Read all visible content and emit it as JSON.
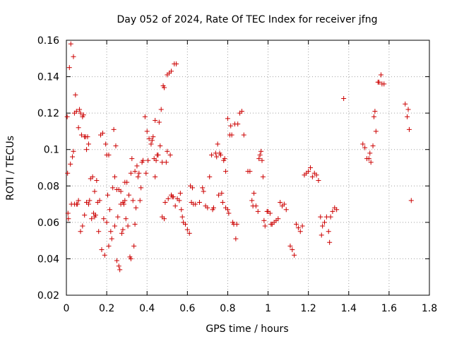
{
  "chart_data": {
    "type": "scatter",
    "title": "Day 052 of 2024, Rate Of TEC Index for receiver jfng",
    "xlabel": "GPS time / hours",
    "ylabel": "ROTI / TECUs",
    "xlim": [
      0,
      1.8
    ],
    "ylim": [
      0.02,
      0.16
    ],
    "grid": true,
    "marker": "plus",
    "color": "#cc0000",
    "x_ticks": [
      0,
      0.2,
      0.4,
      0.6,
      0.8,
      1,
      1.2,
      1.4,
      1.6,
      1.8
    ],
    "x_tick_labels": [
      "0",
      "0.2",
      "0.4",
      "0.6",
      "0.8",
      "1",
      "1.2",
      "1.4",
      "1.6",
      "1.8"
    ],
    "y_ticks": [
      0.02,
      0.04,
      0.06,
      0.08,
      0.1,
      0.12,
      0.14,
      0.16
    ],
    "y_tick_labels": [
      "0.02",
      "0.04",
      "0.06",
      "0.08",
      "0.1",
      "0.12",
      "0.14",
      "0.16"
    ],
    "points": [
      [
        0.004,
        0.118
      ],
      [
        0.006,
        0.087
      ],
      [
        0.008,
        0.065
      ],
      [
        0.01,
        0.062
      ],
      [
        0.015,
        0.145
      ],
      [
        0.02,
        0.092
      ],
      [
        0.022,
        0.158
      ],
      [
        0.025,
        0.07
      ],
      [
        0.03,
        0.096
      ],
      [
        0.035,
        0.099
      ],
      [
        0.035,
        0.151
      ],
      [
        0.04,
        0.12
      ],
      [
        0.04,
        0.07
      ],
      [
        0.045,
        0.13
      ],
      [
        0.05,
        0.121
      ],
      [
        0.05,
        0.07
      ],
      [
        0.055,
        0.07
      ],
      [
        0.06,
        0.112
      ],
      [
        0.06,
        0.072
      ],
      [
        0.065,
        0.122
      ],
      [
        0.07,
        0.055
      ],
      [
        0.07,
        0.12
      ],
      [
        0.075,
        0.108
      ],
      [
        0.08,
        0.118
      ],
      [
        0.08,
        0.058
      ],
      [
        0.085,
        0.119
      ],
      [
        0.09,
        0.107
      ],
      [
        0.09,
        0.064
      ],
      [
        0.095,
        0.107
      ],
      [
        0.1,
        0.1
      ],
      [
        0.1,
        0.071
      ],
      [
        0.105,
        0.107
      ],
      [
        0.11,
        0.07
      ],
      [
        0.11,
        0.103
      ],
      [
        0.115,
        0.072
      ],
      [
        0.12,
        0.084
      ],
      [
        0.125,
        0.062
      ],
      [
        0.13,
        0.085
      ],
      [
        0.135,
        0.065
      ],
      [
        0.14,
        0.063
      ],
      [
        0.14,
        0.077
      ],
      [
        0.145,
        0.064
      ],
      [
        0.15,
        0.083
      ],
      [
        0.155,
        0.071
      ],
      [
        0.16,
        0.055
      ],
      [
        0.165,
        0.072
      ],
      [
        0.17,
        0.108
      ],
      [
        0.175,
        0.045
      ],
      [
        0.18,
        0.109
      ],
      [
        0.185,
        0.062
      ],
      [
        0.19,
        0.042
      ],
      [
        0.195,
        0.103
      ],
      [
        0.2,
        0.06
      ],
      [
        0.2,
        0.097
      ],
      [
        0.205,
        0.075
      ],
      [
        0.21,
        0.047
      ],
      [
        0.21,
        0.097
      ],
      [
        0.215,
        0.067
      ],
      [
        0.22,
        0.055
      ],
      [
        0.225,
        0.051
      ],
      [
        0.23,
        0.079
      ],
      [
        0.235,
        0.111
      ],
      [
        0.24,
        0.085
      ],
      [
        0.24,
        0.058
      ],
      [
        0.245,
        0.102
      ],
      [
        0.25,
        0.039
      ],
      [
        0.25,
        0.078
      ],
      [
        0.255,
        0.063
      ],
      [
        0.26,
        0.036
      ],
      [
        0.26,
        0.078
      ],
      [
        0.265,
        0.034
      ],
      [
        0.27,
        0.077
      ],
      [
        0.27,
        0.07
      ],
      [
        0.275,
        0.054
      ],
      [
        0.28,
        0.071
      ],
      [
        0.28,
        0.056
      ],
      [
        0.285,
        0.07
      ],
      [
        0.29,
        0.072
      ],
      [
        0.29,
        0.082
      ],
      [
        0.295,
        0.062
      ],
      [
        0.3,
        0.082
      ],
      [
        0.305,
        0.058
      ],
      [
        0.31,
        0.075
      ],
      [
        0.315,
        0.041
      ],
      [
        0.32,
        0.087
      ],
      [
        0.32,
        0.04
      ],
      [
        0.325,
        0.095
      ],
      [
        0.33,
        0.072
      ],
      [
        0.335,
        0.047
      ],
      [
        0.34,
        0.059
      ],
      [
        0.34,
        0.088
      ],
      [
        0.345,
        0.068
      ],
      [
        0.35,
        0.091
      ],
      [
        0.355,
        0.085
      ],
      [
        0.36,
        0.087
      ],
      [
        0.365,
        0.072
      ],
      [
        0.37,
        0.079
      ],
      [
        0.375,
        0.093
      ],
      [
        0.38,
        0.094
      ],
      [
        0.39,
        0.118
      ],
      [
        0.395,
        0.087
      ],
      [
        0.4,
        0.11
      ],
      [
        0.405,
        0.094
      ],
      [
        0.41,
        0.106
      ],
      [
        0.42,
        0.103
      ],
      [
        0.425,
        0.105
      ],
      [
        0.43,
        0.107
      ],
      [
        0.435,
        0.095
      ],
      [
        0.44,
        0.085
      ],
      [
        0.44,
        0.116
      ],
      [
        0.445,
        0.094
      ],
      [
        0.45,
        0.097
      ],
      [
        0.455,
        0.097
      ],
      [
        0.46,
        0.115
      ],
      [
        0.465,
        0.102
      ],
      [
        0.47,
        0.122
      ],
      [
        0.475,
        0.063
      ],
      [
        0.475,
        0.093
      ],
      [
        0.48,
        0.135
      ],
      [
        0.485,
        0.062
      ],
      [
        0.485,
        0.134
      ],
      [
        0.49,
        0.071
      ],
      [
        0.495,
        0.093
      ],
      [
        0.5,
        0.141
      ],
      [
        0.5,
        0.099
      ],
      [
        0.505,
        0.073
      ],
      [
        0.51,
        0.142
      ],
      [
        0.515,
        0.097
      ],
      [
        0.52,
        0.143
      ],
      [
        0.52,
        0.075
      ],
      [
        0.525,
        0.074
      ],
      [
        0.53,
        0.074
      ],
      [
        0.535,
        0.147
      ],
      [
        0.54,
        0.069
      ],
      [
        0.545,
        0.147
      ],
      [
        0.55,
        0.073
      ],
      [
        0.56,
        0.072
      ],
      [
        0.565,
        0.076
      ],
      [
        0.57,
        0.067
      ],
      [
        0.575,
        0.063
      ],
      [
        0.58,
        0.06
      ],
      [
        0.59,
        0.059
      ],
      [
        0.6,
        0.056
      ],
      [
        0.61,
        0.054
      ],
      [
        0.615,
        0.08
      ],
      [
        0.62,
        0.071
      ],
      [
        0.625,
        0.079
      ],
      [
        0.63,
        0.07
      ],
      [
        0.64,
        0.07
      ],
      [
        0.66,
        0.071
      ],
      [
        0.675,
        0.079
      ],
      [
        0.68,
        0.077
      ],
      [
        0.69,
        0.069
      ],
      [
        0.7,
        0.068
      ],
      [
        0.71,
        0.085
      ],
      [
        0.72,
        0.097
      ],
      [
        0.725,
        0.067
      ],
      [
        0.73,
        0.068
      ],
      [
        0.74,
        0.098
      ],
      [
        0.745,
        0.096
      ],
      [
        0.75,
        0.103
      ],
      [
        0.755,
        0.075
      ],
      [
        0.76,
        0.098
      ],
      [
        0.765,
        0.097
      ],
      [
        0.77,
        0.076
      ],
      [
        0.775,
        0.071
      ],
      [
        0.78,
        0.094
      ],
      [
        0.785,
        0.095
      ],
      [
        0.79,
        0.088
      ],
      [
        0.79,
        0.068
      ],
      [
        0.8,
        0.117
      ],
      [
        0.8,
        0.067
      ],
      [
        0.805,
        0.065
      ],
      [
        0.81,
        0.108
      ],
      [
        0.815,
        0.113
      ],
      [
        0.82,
        0.108
      ],
      [
        0.825,
        0.06
      ],
      [
        0.83,
        0.059
      ],
      [
        0.835,
        0.114
      ],
      [
        0.84,
        0.051
      ],
      [
        0.845,
        0.059
      ],
      [
        0.85,
        0.114
      ],
      [
        0.86,
        0.12
      ],
      [
        0.87,
        0.121
      ],
      [
        0.88,
        0.108
      ],
      [
        0.9,
        0.088
      ],
      [
        0.91,
        0.088
      ],
      [
        0.92,
        0.072
      ],
      [
        0.925,
        0.069
      ],
      [
        0.93,
        0.076
      ],
      [
        0.94,
        0.069
      ],
      [
        0.95,
        0.066
      ],
      [
        0.955,
        0.095
      ],
      [
        0.96,
        0.097
      ],
      [
        0.965,
        0.099
      ],
      [
        0.97,
        0.094
      ],
      [
        0.975,
        0.085
      ],
      [
        0.98,
        0.061
      ],
      [
        0.985,
        0.058
      ],
      [
        0.995,
        0.066
      ],
      [
        1.0,
        0.066
      ],
      [
        1.01,
        0.065
      ],
      [
        1.015,
        0.059
      ],
      [
        1.02,
        0.059
      ],
      [
        1.03,
        0.06
      ],
      [
        1.04,
        0.061
      ],
      [
        1.05,
        0.062
      ],
      [
        1.06,
        0.071
      ],
      [
        1.07,
        0.069
      ],
      [
        1.08,
        0.07
      ],
      [
        1.09,
        0.067
      ],
      [
        1.11,
        0.047
      ],
      [
        1.12,
        0.045
      ],
      [
        1.13,
        0.042
      ],
      [
        1.14,
        0.059
      ],
      [
        1.15,
        0.057
      ],
      [
        1.16,
        0.055
      ],
      [
        1.17,
        0.058
      ],
      [
        1.18,
        0.086
      ],
      [
        1.19,
        0.087
      ],
      [
        1.2,
        0.088
      ],
      [
        1.21,
        0.09
      ],
      [
        1.22,
        0.085
      ],
      [
        1.23,
        0.087
      ],
      [
        1.24,
        0.086
      ],
      [
        1.25,
        0.083
      ],
      [
        1.26,
        0.063
      ],
      [
        1.265,
        0.053
      ],
      [
        1.27,
        0.058
      ],
      [
        1.28,
        0.06
      ],
      [
        1.29,
        0.063
      ],
      [
        1.3,
        0.055
      ],
      [
        1.305,
        0.049
      ],
      [
        1.31,
        0.063
      ],
      [
        1.32,
        0.066
      ],
      [
        1.33,
        0.068
      ],
      [
        1.34,
        0.067
      ],
      [
        1.375,
        0.128
      ],
      [
        1.47,
        0.103
      ],
      [
        1.48,
        0.101
      ],
      [
        1.49,
        0.095
      ],
      [
        1.5,
        0.095
      ],
      [
        1.505,
        0.098
      ],
      [
        1.51,
        0.093
      ],
      [
        1.52,
        0.102
      ],
      [
        1.525,
        0.118
      ],
      [
        1.53,
        0.121
      ],
      [
        1.535,
        0.11
      ],
      [
        1.545,
        0.137
      ],
      [
        1.55,
        0.137
      ],
      [
        1.56,
        0.141
      ],
      [
        1.565,
        0.136
      ],
      [
        1.575,
        0.136
      ],
      [
        1.68,
        0.125
      ],
      [
        1.69,
        0.118
      ],
      [
        1.695,
        0.122
      ],
      [
        1.7,
        0.111
      ],
      [
        1.71,
        0.072
      ]
    ]
  }
}
